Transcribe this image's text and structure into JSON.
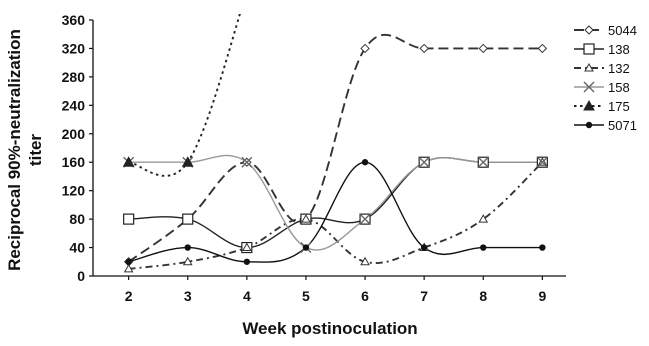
{
  "chart_data": {
    "type": "line",
    "xlabel": "Week postinoculation",
    "ylabel_line1": "Reciprocal 90%-neutralization",
    "ylabel_line2": "titer",
    "x": [
      2,
      3,
      4,
      5,
      6,
      7,
      8,
      9
    ],
    "ylim": [
      0,
      360
    ],
    "yticks": [
      0,
      40,
      80,
      120,
      160,
      200,
      240,
      280,
      320,
      360
    ],
    "grid": false,
    "legend_position": "right",
    "series": [
      {
        "name": "5044",
        "values": [
          20,
          80,
          160,
          80,
          320,
          320,
          320,
          320
        ],
        "line": "long-dash",
        "marker": "diamond-open",
        "color": "#333333"
      },
      {
        "name": "138",
        "values": [
          80,
          80,
          40,
          80,
          80,
          160,
          160,
          160
        ],
        "line": "solid",
        "marker": "square-open",
        "color": "#222222"
      },
      {
        "name": "132",
        "values": [
          10,
          20,
          40,
          80,
          20,
          40,
          80,
          160
        ],
        "line": "dash-dot",
        "marker": "triangle-open",
        "color": "#333333"
      },
      {
        "name": "158",
        "values": [
          160,
          160,
          160,
          40,
          80,
          160,
          160,
          160
        ],
        "line": "solid",
        "marker": "x",
        "color": "#999999"
      },
      {
        "name": "175",
        "values": [
          160,
          160,
          400,
          null,
          null,
          null,
          null,
          null
        ],
        "line": "dotted",
        "marker": "triangle-filled",
        "color": "#222222"
      },
      {
        "name": "5071",
        "values": [
          20,
          40,
          20,
          40,
          160,
          40,
          40,
          40
        ],
        "line": "solid",
        "marker": "circle-filled",
        "color": "#111111"
      }
    ]
  }
}
